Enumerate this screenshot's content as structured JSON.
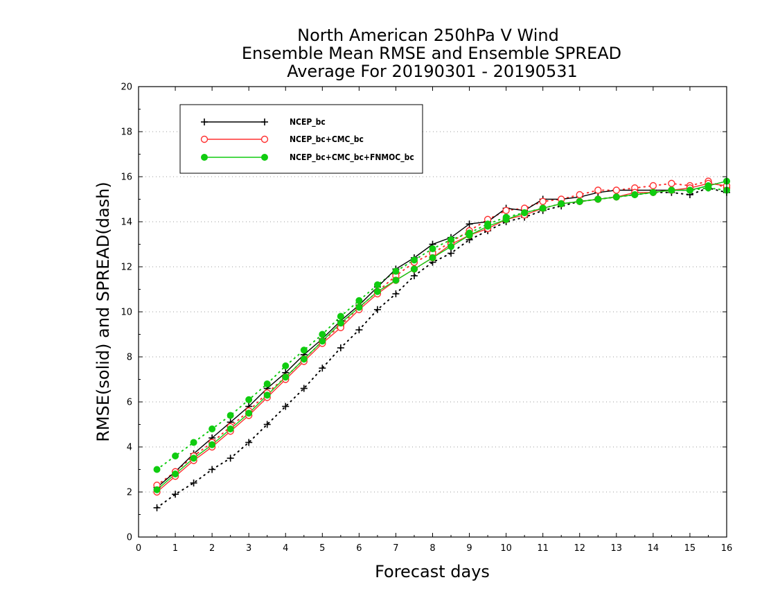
{
  "chart_data": {
    "type": "line",
    "title": [
      "North American 250hPa V Wind",
      "Ensemble Mean RMSE and Ensemble SPREAD",
      "Average For 20190301 - 20190531"
    ],
    "xlabel": "Forecast days",
    "ylabel": "RMSE(solid) and SPREAD(dash)",
    "xlim": [
      0,
      16
    ],
    "ylim": [
      0,
      20
    ],
    "x_ticks": [
      "0",
      "1",
      "2",
      "3",
      "4",
      "5",
      "6",
      "7",
      "8",
      "9",
      "10",
      "11",
      "12",
      "13",
      "14",
      "15",
      "16"
    ],
    "y_ticks": [
      "0",
      "2",
      "4",
      "6",
      "8",
      "10",
      "12",
      "14",
      "16",
      "18",
      "20"
    ],
    "grid": "dotted horizontal",
    "legend_position": "top-left",
    "x": [
      0.5,
      1,
      1.5,
      2,
      2.5,
      3,
      3.5,
      4,
      4.5,
      5,
      5.5,
      6,
      6.5,
      7,
      7.5,
      8,
      8.5,
      9,
      9.5,
      10,
      10.5,
      11,
      11.5,
      12,
      12.5,
      13,
      13.5,
      14,
      14.5,
      15,
      15.5,
      16
    ],
    "series": [
      {
        "name": "NCEP_bc",
        "color": "#000000",
        "marker": "plus",
        "rmse": [
          2.2,
          2.9,
          3.7,
          4.4,
          5.1,
          5.8,
          6.6,
          7.3,
          8.1,
          8.8,
          9.6,
          10.3,
          11.1,
          11.9,
          12.4,
          13.0,
          13.3,
          13.9,
          14.0,
          14.6,
          14.5,
          15.0,
          15.0,
          15.1,
          15.3,
          15.4,
          15.4,
          15.4,
          15.4,
          15.4,
          15.6,
          15.8
        ],
        "spread": [
          1.3,
          1.9,
          2.4,
          3.0,
          3.5,
          4.2,
          5.0,
          5.8,
          6.6,
          7.5,
          8.4,
          9.2,
          10.1,
          10.8,
          11.6,
          12.2,
          12.6,
          13.2,
          13.6,
          14.0,
          14.2,
          14.5,
          14.7,
          14.9,
          15.0,
          15.1,
          15.2,
          15.3,
          15.3,
          15.2,
          15.5,
          15.3
        ]
      },
      {
        "name": "NCEP_bc+CMC_bc",
        "color": "#ff3030",
        "marker": "open-circle",
        "rmse": [
          2.0,
          2.7,
          3.4,
          4.0,
          4.7,
          5.4,
          6.2,
          7.0,
          7.8,
          8.6,
          9.3,
          10.1,
          10.8,
          11.4,
          11.9,
          12.4,
          13.0,
          13.4,
          13.7,
          14.1,
          14.3,
          14.6,
          14.8,
          14.9,
          15.0,
          15.1,
          15.3,
          15.3,
          15.4,
          15.5,
          15.7,
          15.6
        ],
        "spread": [
          2.3,
          2.9,
          3.6,
          4.2,
          4.9,
          5.6,
          6.4,
          7.1,
          7.9,
          8.7,
          9.4,
          10.2,
          10.9,
          11.6,
          12.2,
          12.6,
          13.1,
          13.6,
          14.1,
          14.5,
          14.6,
          14.9,
          15.0,
          15.2,
          15.4,
          15.4,
          15.5,
          15.6,
          15.7,
          15.6,
          15.8,
          15.5
        ]
      },
      {
        "name": "NCEP_bc+CMC_bc+FNMOC_bc",
        "color": "#10cc10",
        "marker": "filled-circle",
        "rmse": [
          2.1,
          2.8,
          3.5,
          4.1,
          4.8,
          5.5,
          6.3,
          7.1,
          7.9,
          8.7,
          9.5,
          10.2,
          10.9,
          11.4,
          11.9,
          12.4,
          12.9,
          13.4,
          13.8,
          14.1,
          14.4,
          14.6,
          14.8,
          14.9,
          15.0,
          15.1,
          15.2,
          15.3,
          15.4,
          15.4,
          15.6,
          15.8
        ],
        "spread": [
          3.0,
          3.6,
          4.2,
          4.8,
          5.4,
          6.1,
          6.8,
          7.6,
          8.3,
          9.0,
          9.8,
          10.5,
          11.2,
          11.8,
          12.3,
          12.8,
          13.2,
          13.5,
          13.9,
          14.2,
          14.4,
          14.6,
          14.8,
          14.9,
          15.0,
          15.1,
          15.2,
          15.3,
          15.4,
          15.4,
          15.5,
          15.4
        ]
      }
    ]
  }
}
